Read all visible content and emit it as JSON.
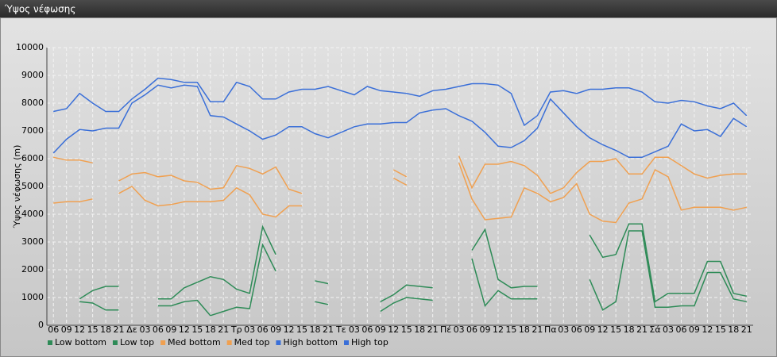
{
  "chart_data": {
    "type": "line",
    "title": "Ύψος νέφωσης",
    "y_label": "Ύψος νέφωσης (m)",
    "categories": [
      "06",
      "09",
      "12",
      "15",
      "18",
      "21",
      "Δε",
      "03",
      "06",
      "09",
      "12",
      "15",
      "18",
      "21",
      "Τρ",
      "03",
      "06",
      "09",
      "12",
      "15",
      "18",
      "21",
      "Τε",
      "03",
      "06",
      "09",
      "12",
      "15",
      "18",
      "21",
      "Πέ",
      "03",
      "06",
      "09",
      "12",
      "15",
      "18",
      "21",
      "Πα",
      "03",
      "06",
      "09",
      "12",
      "15",
      "18",
      "21",
      "Σά",
      "03",
      "06",
      "09",
      "12",
      "15",
      "18",
      "21"
    ],
    "series": [
      {
        "name": "Low bottom",
        "color": "#2e8b57",
        "values": [
          null,
          null,
          850,
          800,
          550,
          550,
          null,
          null,
          700,
          700,
          850,
          900,
          350,
          500,
          650,
          600,
          2900,
          1950,
          null,
          null,
          850,
          750,
          null,
          null,
          null,
          500,
          800,
          1000,
          950,
          900,
          null,
          null,
          2400,
          700,
          1250,
          950,
          950,
          950,
          null,
          null,
          null,
          1650,
          550,
          850,
          3400,
          3400,
          650,
          650,
          700,
          700,
          1900,
          1900,
          950,
          850
        ]
      },
      {
        "name": "Low top",
        "color": "#2e8b57",
        "values": [
          null,
          null,
          950,
          1250,
          1400,
          1400,
          null,
          null,
          950,
          950,
          1350,
          1550,
          1750,
          1650,
          1300,
          1150,
          3550,
          2550,
          null,
          null,
          1600,
          1500,
          null,
          null,
          null,
          850,
          1100,
          1450,
          1400,
          1350,
          null,
          null,
          2700,
          3450,
          1650,
          1350,
          1400,
          1400,
          null,
          null,
          null,
          3250,
          2450,
          2550,
          3650,
          3650,
          850,
          1150,
          1150,
          1150,
          2300,
          2300,
          1150,
          1050
        ]
      },
      {
        "name": "Med bottom",
        "color": "#f0a050",
        "values": [
          4400,
          4450,
          4450,
          4550,
          null,
          4750,
          5000,
          4500,
          4300,
          4350,
          4450,
          4450,
          4450,
          4500,
          4950,
          4700,
          4000,
          3900,
          4300,
          4300,
          null,
          null,
          null,
          null,
          null,
          null,
          5300,
          5050,
          null,
          null,
          null,
          5850,
          4550,
          3800,
          3850,
          3900,
          4950,
          4750,
          4450,
          4600,
          5100,
          4000,
          3750,
          3700,
          4400,
          4550,
          5600,
          5350,
          4150,
          4250,
          4250,
          4250,
          4150,
          4250
        ]
      },
      {
        "name": "Med top",
        "color": "#f0a050",
        "values": [
          6050,
          5950,
          5950,
          5850,
          null,
          5200,
          5450,
          5500,
          5350,
          5400,
          5200,
          5150,
          4900,
          4950,
          5750,
          5650,
          5450,
          5700,
          4900,
          4750,
          null,
          null,
          null,
          null,
          null,
          null,
          5600,
          5350,
          null,
          null,
          null,
          6100,
          4950,
          5800,
          5800,
          5900,
          5750,
          5400,
          4750,
          4950,
          5500,
          5900,
          5900,
          6000,
          5450,
          5450,
          6050,
          6050,
          5750,
          5450,
          5300,
          5400,
          5450,
          5450
        ]
      },
      {
        "name": "High bottom",
        "color": "#3a6fd8",
        "values": [
          6200,
          6700,
          7050,
          7000,
          7100,
          7100,
          8000,
          8300,
          8650,
          8550,
          8650,
          8600,
          7550,
          7500,
          7250,
          7000,
          6700,
          6850,
          7150,
          7150,
          6900,
          6750,
          6950,
          7150,
          7250,
          7250,
          7300,
          7300,
          7650,
          7750,
          7800,
          7550,
          7350,
          6950,
          6450,
          6400,
          6650,
          7100,
          8150,
          7650,
          7150,
          6750,
          6500,
          6300,
          6050,
          6050,
          6250,
          6450,
          7250,
          7000,
          7050,
          6800,
          7450,
          7150
        ]
      },
      {
        "name": "High top",
        "color": "#3a6fd8",
        "values": [
          7700,
          7800,
          8350,
          8000,
          7700,
          7700,
          8150,
          8500,
          8900,
          8850,
          8750,
          8750,
          8050,
          8050,
          8750,
          8600,
          8150,
          8150,
          8400,
          8500,
          8500,
          8600,
          8450,
          8300,
          8600,
          8450,
          8400,
          8350,
          8250,
          8450,
          8500,
          8600,
          8700,
          8700,
          8650,
          8350,
          7200,
          7550,
          8400,
          8450,
          8350,
          8500,
          8500,
          8550,
          8550,
          8400,
          8050,
          8000,
          8100,
          8050,
          7900,
          7800,
          8000,
          7550
        ]
      }
    ],
    "ylim": [
      0,
      10000
    ],
    "yticks": [
      0,
      1000,
      2000,
      3000,
      4000,
      5000,
      6000,
      7000,
      8000,
      9000,
      10000
    ],
    "grid": true
  }
}
